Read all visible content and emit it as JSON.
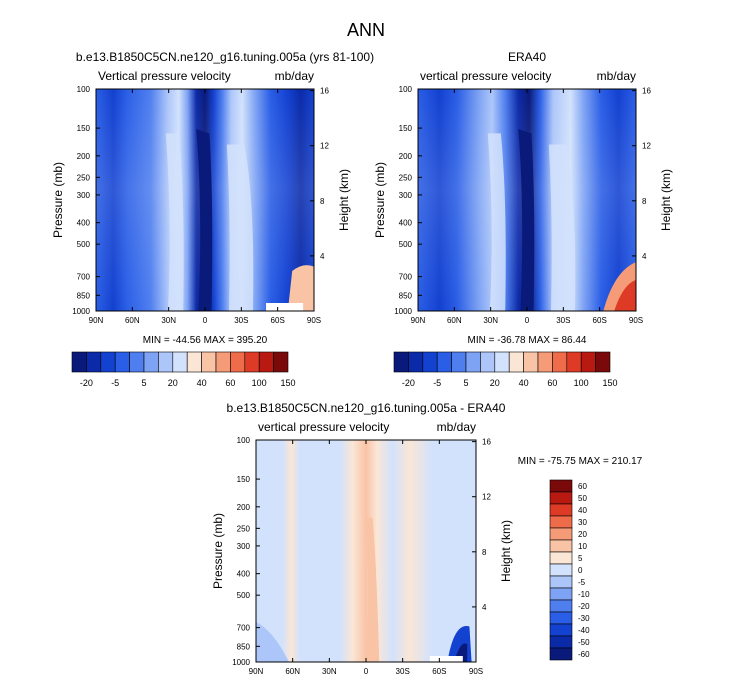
{
  "page_title": "ANN",
  "colors": {
    "cb1": [
      "#0a1a7a",
      "#0b2aa8",
      "#1341d0",
      "#2a5ee6",
      "#4f7fef",
      "#7ea3f4",
      "#adc6fa",
      "#d2e2fc",
      "#fbe6d6",
      "#f9c3a6",
      "#f69b78",
      "#ef6c4b",
      "#de3b26",
      "#b81a12",
      "#7a0a0a"
    ],
    "cb2": [
      "#0a1a7a",
      "#0b2aa8",
      "#1341d0",
      "#2a5ee6",
      "#4f7fef",
      "#7ea3f4",
      "#adc6fa",
      "#d2e2fc",
      "#fbe6d6",
      "#f9c3a6",
      "#f69b78",
      "#ef6c4b",
      "#de3b26",
      "#b81a12",
      "#7a0a0a"
    ]
  },
  "chart_data": [
    {
      "type": "heatmap",
      "title": "b.e13.B1850C5CN.ne120_g16.tuning.005a (yrs 81-100)",
      "left_label": "Vertical pressure velocity",
      "right_label": "mb/day",
      "ylabel": "Pressure (mb)",
      "y2label": "Height (km)",
      "x_ticks": [
        "90N",
        "60N",
        "30N",
        "0",
        "30S",
        "60S",
        "90S"
      ],
      "y_ticks": [
        "100",
        "150",
        "200",
        "250",
        "300",
        "400",
        "500",
        "700",
        "850",
        "1000"
      ],
      "y2_ticks": [
        "16",
        "12",
        "8",
        "4"
      ],
      "min_max": "MIN = -44.56  MAX = 395.20",
      "colorbar_labels": [
        "-20",
        "-5",
        "5",
        "20",
        "40",
        "60",
        "100",
        "150"
      ],
      "colorbar_levels": [
        -40,
        -30,
        -20,
        -10,
        -5,
        0,
        5,
        10,
        20,
        30,
        40,
        50,
        60,
        100,
        150
      ]
    },
    {
      "type": "heatmap",
      "title": "ERA40",
      "left_label": "vertical pressure velocity",
      "right_label": "mb/day",
      "ylabel": "Pressure (mb)",
      "y2label": "Height (km)",
      "x_ticks": [
        "90N",
        "60N",
        "30N",
        "0",
        "30S",
        "60S",
        "90S"
      ],
      "y_ticks": [
        "100",
        "150",
        "200",
        "250",
        "300",
        "400",
        "500",
        "700",
        "850",
        "1000"
      ],
      "y2_ticks": [
        "16",
        "12",
        "8",
        "4"
      ],
      "min_max": "MIN = -36.78  MAX = 86.44",
      "colorbar_labels": [
        "-20",
        "-5",
        "5",
        "20",
        "40",
        "60",
        "100",
        "150"
      ],
      "colorbar_levels": [
        -40,
        -30,
        -20,
        -10,
        -5,
        0,
        5,
        10,
        20,
        30,
        40,
        50,
        60,
        100,
        150
      ]
    },
    {
      "type": "heatmap",
      "title": "b.e13.B1850C5CN.ne120_g16.tuning.005a - ERA40",
      "left_label": "vertical pressure velocity",
      "right_label": "mb/day",
      "ylabel": "Pressure (mb)",
      "y2label": "Height (km)",
      "x_ticks": [
        "90N",
        "60N",
        "30N",
        "0",
        "30S",
        "60S",
        "90S"
      ],
      "y_ticks": [
        "100",
        "150",
        "200",
        "250",
        "300",
        "400",
        "500",
        "700",
        "850",
        "1000"
      ],
      "y2_ticks": [
        "16",
        "12",
        "8",
        "4"
      ],
      "min_max": "MIN = -75.75  MAX = 210.17",
      "colorbar_labels": [
        "60",
        "50",
        "40",
        "30",
        "20",
        "10",
        "5",
        "0",
        "-5",
        "-10",
        "-20",
        "-30",
        "-40",
        "-50",
        "-60"
      ],
      "colorbar_levels": [
        60,
        50,
        40,
        30,
        20,
        10,
        5,
        0,
        -5,
        -10,
        -20,
        -30,
        -40,
        -50,
        -60
      ]
    }
  ]
}
